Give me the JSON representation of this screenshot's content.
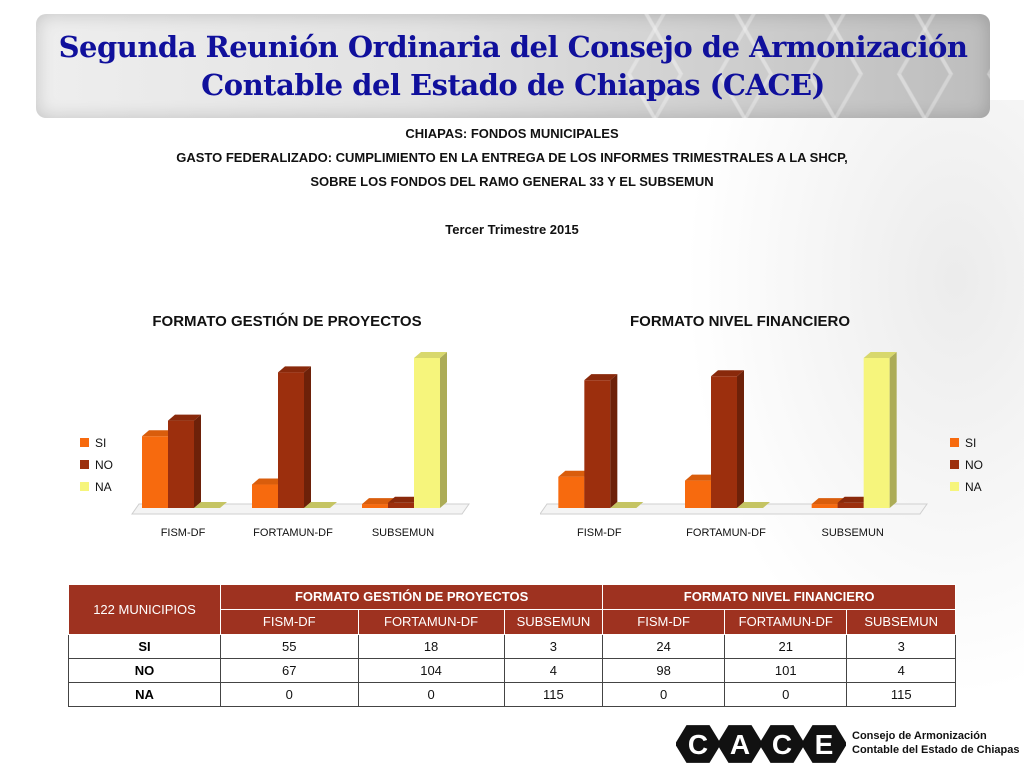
{
  "header": {
    "title_line1": "Segunda Reunión Ordinaria del Consejo de Armonización",
    "title_line2": "Contable del Estado de Chiapas (CACE)"
  },
  "subheads": {
    "line1": "CHIAPAS: FONDOS MUNICIPALES",
    "line2": "GASTO FEDERALIZADO: CUMPLIMIENTO EN LA ENTREGA DE LOS INFORMES TRIMESTRALES A LA SHCP,",
    "line3": "SOBRE LOS FONDOS DEL RAMO GENERAL 33 Y EL SUBSEMUN",
    "period": "Tercer Trimestre 2015"
  },
  "colors": {
    "SI": "#f76a0e",
    "NO": "#9c2f0d",
    "NA": "#f6f57c",
    "table_header": "#9e3220",
    "title": "#10109c"
  },
  "chart_data": [
    {
      "type": "bar",
      "title": "FORMATO GESTIÓN DE PROYECTOS",
      "categories": [
        "FISM-DF",
        "FORTAMUN-DF",
        "SUBSEMUN"
      ],
      "series": [
        {
          "name": "SI",
          "values": [
            55,
            18,
            3
          ]
        },
        {
          "name": "NO",
          "values": [
            67,
            104,
            4
          ]
        },
        {
          "name": "NA",
          "values": [
            0,
            0,
            115
          ]
        }
      ],
      "legend_placement": "left",
      "ylim": [
        0,
        115
      ],
      "grid": false
    },
    {
      "type": "bar",
      "title": "FORMATO NIVEL FINANCIERO",
      "categories": [
        "FISM-DF",
        "FORTAMUN-DF",
        "SUBSEMUN"
      ],
      "series": [
        {
          "name": "SI",
          "values": [
            24,
            21,
            3
          ]
        },
        {
          "name": "NO",
          "values": [
            98,
            101,
            4
          ]
        },
        {
          "name": "NA",
          "values": [
            0,
            0,
            115
          ]
        }
      ],
      "legend_placement": "right",
      "ylim": [
        0,
        115
      ],
      "grid": false
    }
  ],
  "table": {
    "corner": "122 MUNICIPIOS",
    "groups": [
      "FORMATO GESTIÓN DE PROYECTOS",
      "FORMATO NIVEL FINANCIERO"
    ],
    "columns": [
      "FISM-DF",
      "FORTAMUN-DF",
      "SUBSEMUN",
      "FISM-DF",
      "FORTAMUN-DF",
      "SUBSEMUN"
    ],
    "rows": [
      {
        "label": "SI",
        "values": [
          "55",
          "18",
          "3",
          "24",
          "21",
          "3"
        ]
      },
      {
        "label": "NO",
        "values": [
          "67",
          "104",
          "4",
          "98",
          "101",
          "4"
        ]
      },
      {
        "label": "NA",
        "values": [
          "0",
          "0",
          "115",
          "0",
          "0",
          "115"
        ]
      }
    ]
  },
  "logo": {
    "letters": [
      "C",
      "A",
      "C",
      "E"
    ],
    "line1": "Consejo de Armonización",
    "line2": "Contable del Estado de Chiapas"
  }
}
